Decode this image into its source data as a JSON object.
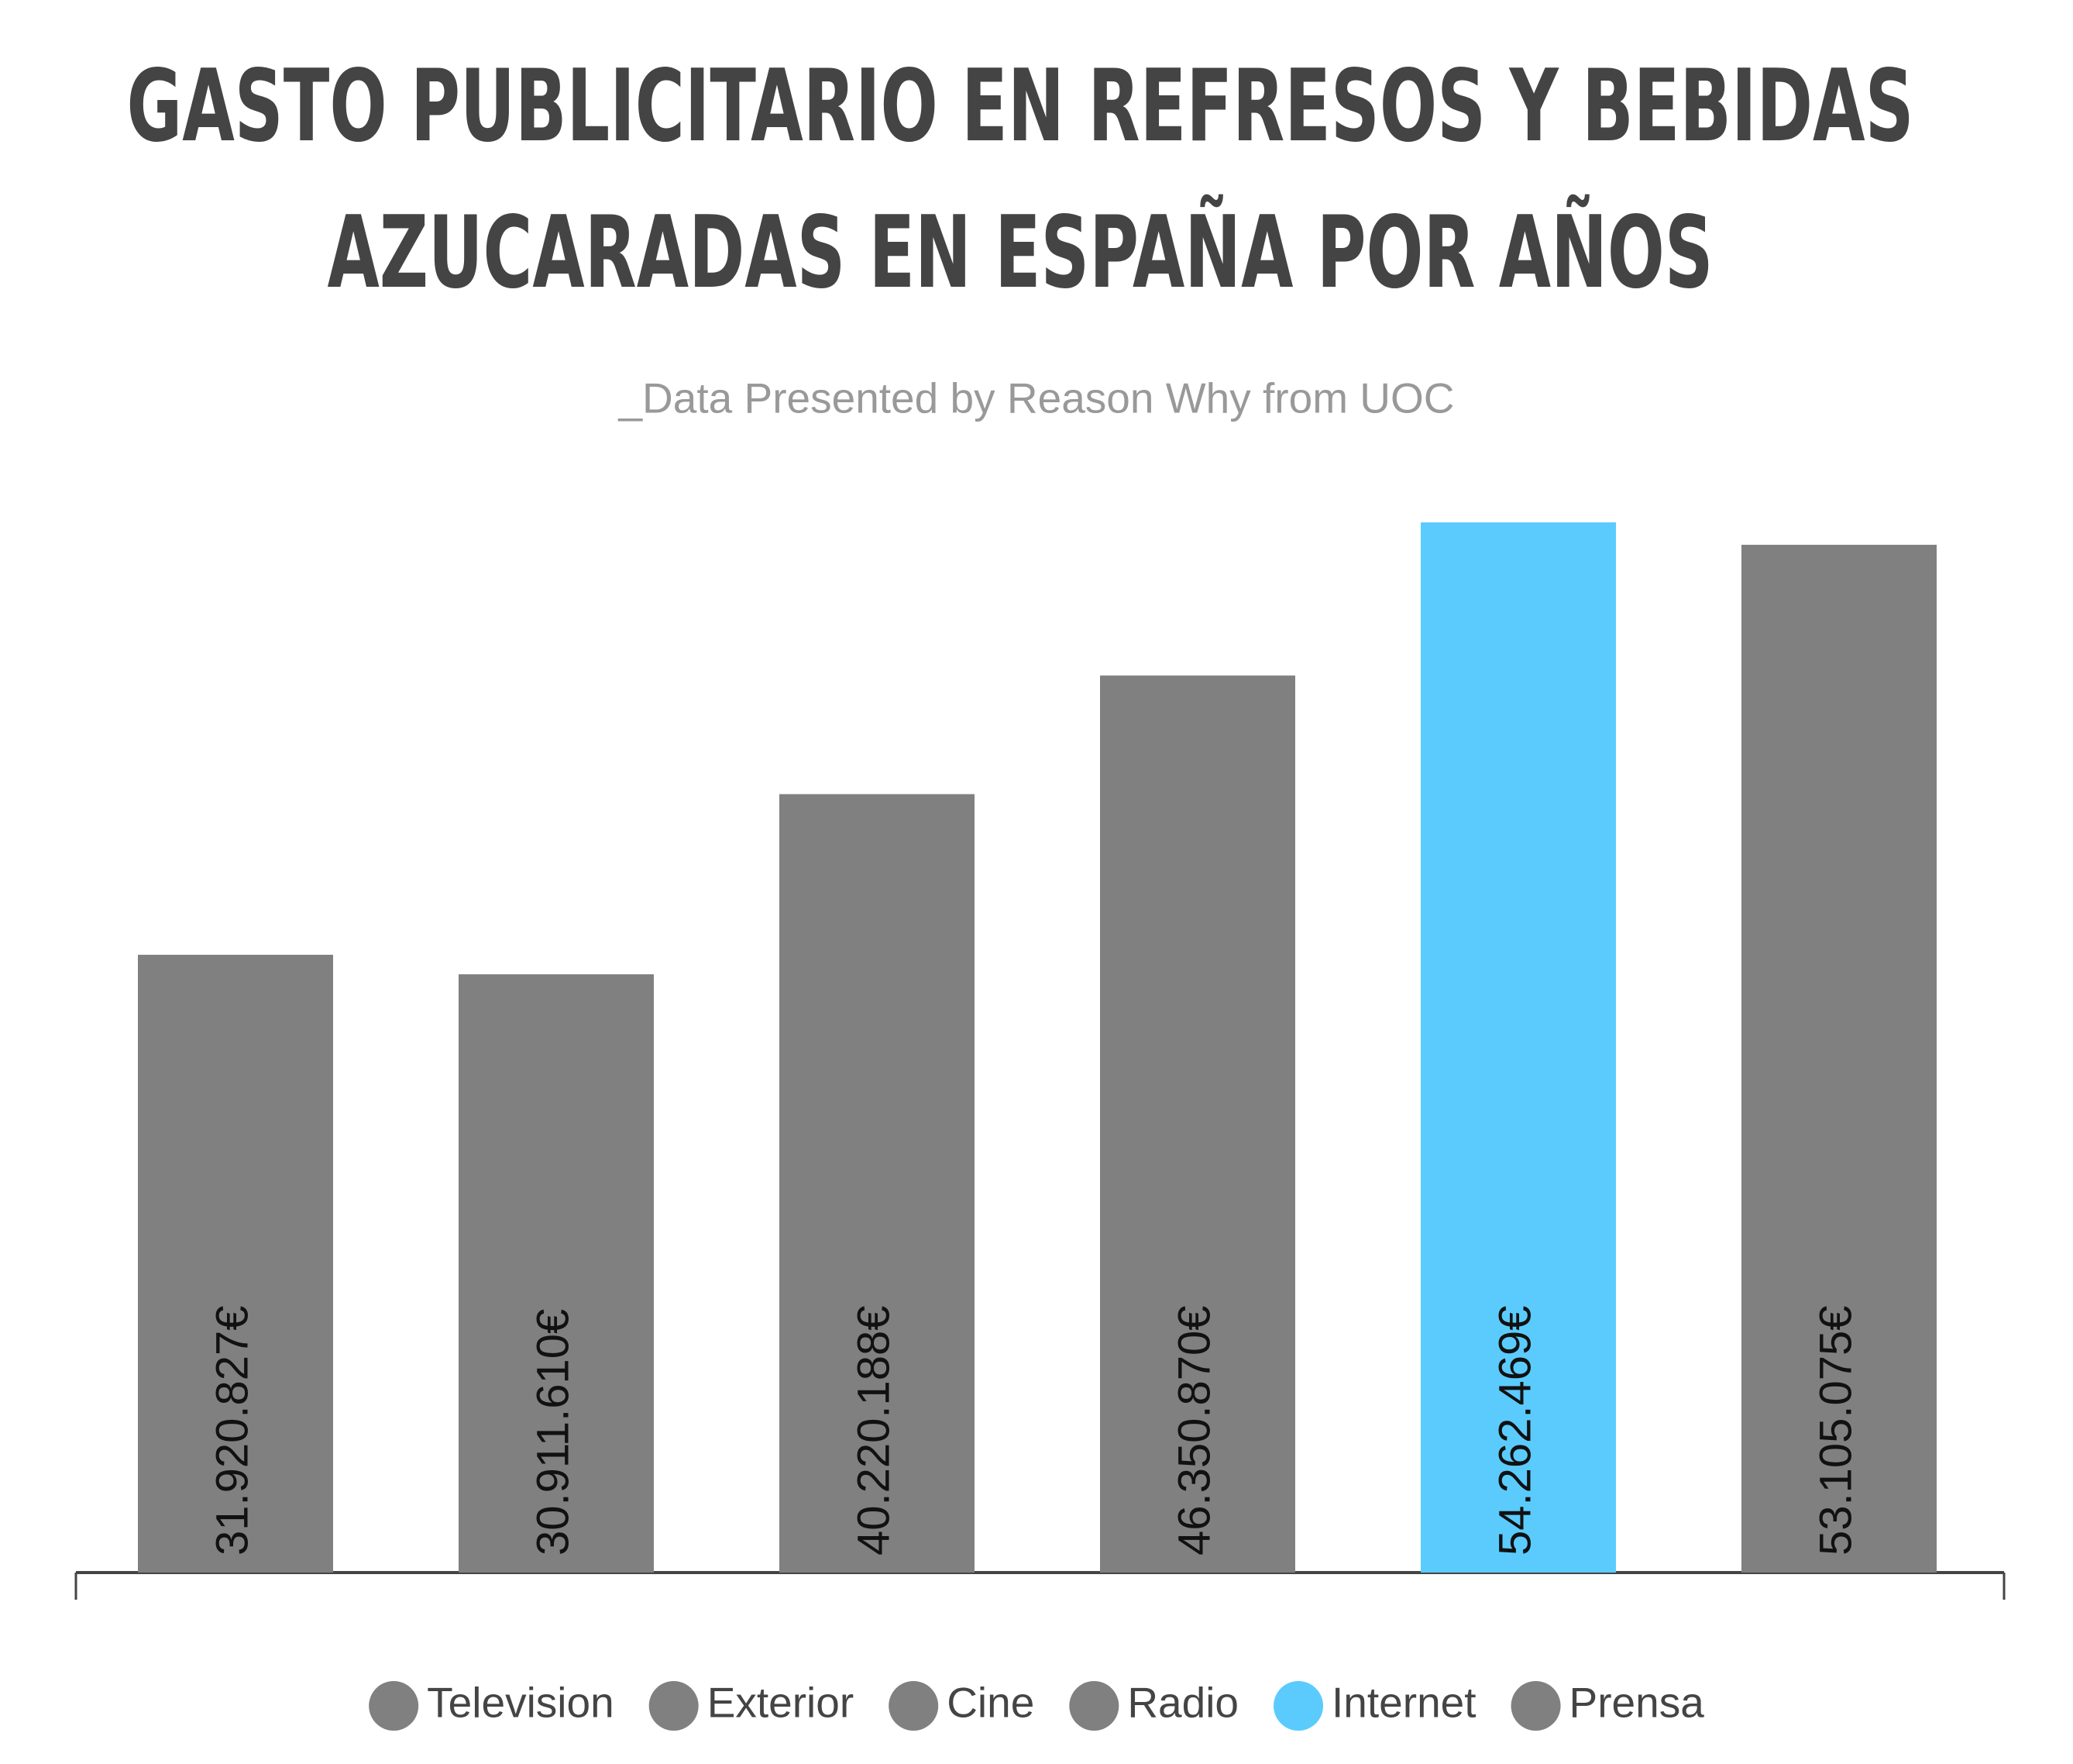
{
  "chart_data": {
    "type": "bar",
    "title": [
      "GASTO PUBLICITARIO EN REFRESOS Y BEBIDAS",
      "AZUCARADAS EN ESPAÑA POR AÑOS"
    ],
    "subtitle": "_Data Presented by Reason Why from UOC",
    "categories": [
      "Television",
      "Exterior",
      "Cine",
      "Radio",
      "Internet",
      "Prensa"
    ],
    "values": [
      31920827,
      30911610,
      40220188,
      46350870,
      54262469,
      53105075
    ],
    "value_labels": [
      "31.920.827€",
      "30.911.610€",
      "40.220.188€",
      "46.350.870€",
      "54.262.469€",
      "53.105.075€"
    ],
    "colors": [
      "#808080",
      "#808080",
      "#808080",
      "#808080",
      "#5bcbfd",
      "#808080"
    ],
    "legend": "bottom"
  }
}
